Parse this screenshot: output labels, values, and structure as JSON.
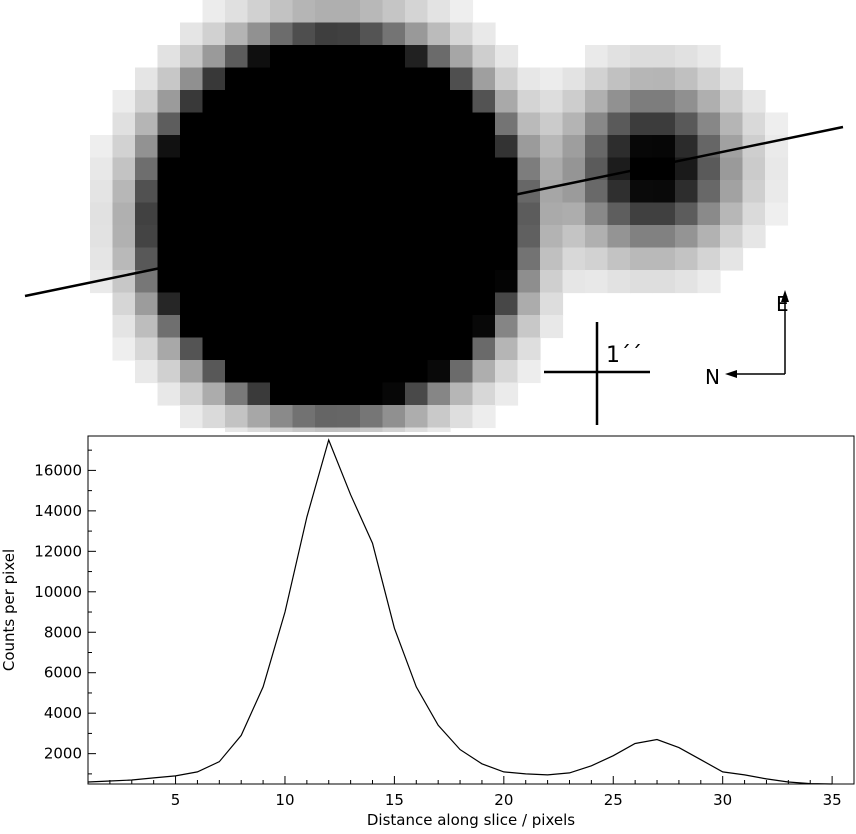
{
  "image_panel": {
    "scale_bar_label": "1´´",
    "compass": {
      "north": "N",
      "east": "E"
    }
  },
  "chart_data": {
    "type": "line",
    "xlabel": "Distance along slice / pixels",
    "ylabel": "Counts per pixel",
    "xlim": [
      1,
      36
    ],
    "ylim": [
      500,
      17700
    ],
    "xticks": [
      5,
      10,
      15,
      20,
      25,
      30,
      35
    ],
    "yticks": [
      2000,
      4000,
      6000,
      8000,
      10000,
      12000,
      14000,
      16000
    ],
    "series": [
      {
        "x": [
          1,
          2,
          3,
          4,
          5,
          6,
          7,
          8,
          9,
          10,
          11,
          12,
          13,
          14,
          15,
          16,
          17,
          18,
          19,
          20,
          21,
          22,
          23,
          24,
          25,
          26,
          27,
          28,
          29,
          30,
          31,
          32,
          33,
          34,
          35
        ],
        "y": [
          600,
          650,
          700,
          800,
          900,
          1100,
          1600,
          2900,
          5300,
          9000,
          13700,
          17500,
          14800,
          12400,
          8200,
          5300,
          3400,
          2200,
          1500,
          1100,
          1000,
          950,
          1050,
          1400,
          1900,
          2500,
          2700,
          2300,
          1700,
          1100,
          950,
          750,
          600,
          520,
          500
        ]
      }
    ]
  }
}
